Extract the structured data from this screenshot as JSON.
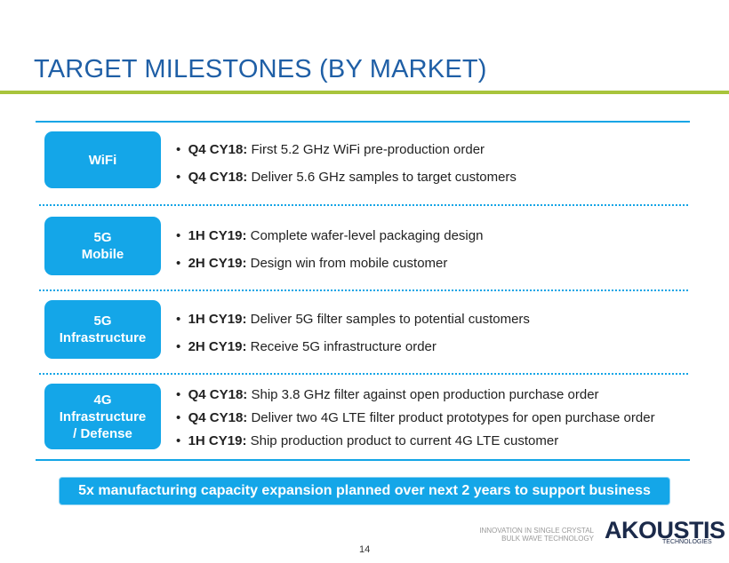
{
  "header": {
    "title": "TARGET MILESTONES (BY MARKET)"
  },
  "sections": [
    {
      "label": [
        "WiFi"
      ],
      "bullets": [
        {
          "lead": "Q4 CY18:",
          "text": "First 5.2 GHz WiFi pre-production order"
        },
        {
          "lead": "Q4 CY18:",
          "text": "Deliver 5.6 GHz samples to target customers"
        }
      ]
    },
    {
      "label": [
        "5G",
        "Mobile"
      ],
      "bullets": [
        {
          "lead": "1H CY19:",
          "text": "Complete wafer-level packaging design"
        },
        {
          "lead": "2H CY19:",
          "text": "Design win from mobile customer"
        }
      ]
    },
    {
      "label": [
        "5G",
        "Infrastructure"
      ],
      "bullets": [
        {
          "lead": "1H CY19:",
          "text": "Deliver 5G filter samples to potential customers"
        },
        {
          "lead": "2H CY19:",
          "text": "Receive 5G infrastructure order"
        }
      ]
    },
    {
      "label": [
        "4G",
        "Infrastructure",
        "/ Defense"
      ],
      "bullets": [
        {
          "lead": "Q4 CY18:",
          "text": "Ship 3.8 GHz filter against open production purchase order"
        },
        {
          "lead": "Q4 CY18:",
          "text": "Deliver two 4G LTE filter product prototypes for open purchase order"
        },
        {
          "lead": "1H CY19:",
          "text": "Ship production product to current 4G LTE customer"
        }
      ]
    }
  ],
  "banner": "5x manufacturing capacity expansion planned over next 2 years to support business",
  "footer": {
    "tagline": [
      "INNOVATION IN SINGLE CRYSTAL",
      "BULK WAVE TECHNOLOGY"
    ],
    "logo": "AKOUSTIS",
    "logo_sub": "TECHNOLOGIES",
    "page": "14"
  }
}
